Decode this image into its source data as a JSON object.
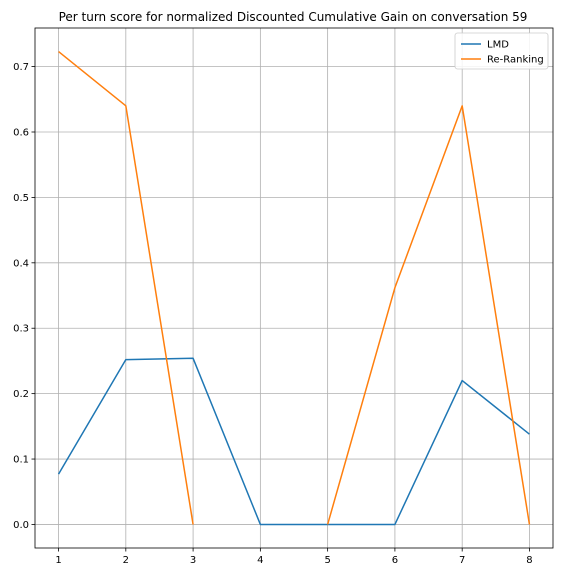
{
  "chart_data": {
    "type": "line",
    "title": "Per turn score for normalized Discounted Cumulative Gain on conversation 59",
    "xlabel": "",
    "ylabel": "",
    "x": [
      1,
      2,
      3,
      4,
      5,
      6,
      7,
      8
    ],
    "xlim": [
      0.65,
      8.35
    ],
    "ylim": [
      -0.036,
      0.759
    ],
    "xticks": [
      "1",
      "2",
      "3",
      "4",
      "5",
      "6",
      "7",
      "8"
    ],
    "yticks": [
      "0.0",
      "0.1",
      "0.2",
      "0.3",
      "0.4",
      "0.5",
      "0.6",
      "0.7"
    ],
    "grid": true,
    "legend_position": "top-right",
    "series": [
      {
        "name": "LMD",
        "color": "#1f77b4",
        "values": [
          0.077,
          0.252,
          0.254,
          0.0,
          0.0,
          0.0,
          0.22,
          0.138
        ]
      },
      {
        "name": "Re-Ranking",
        "color": "#ff7f0e",
        "values": [
          0.723,
          0.64,
          0.0,
          null,
          0.0,
          0.362,
          0.64,
          0.0
        ]
      }
    ]
  }
}
